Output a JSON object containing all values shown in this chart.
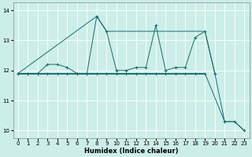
{
  "xlabel": "Humidex (Indice chaleur)",
  "bg_color": "#cceee8",
  "line_color": "#1a6b6b",
  "grid_color": "#ffffff",
  "x_main": [
    0,
    1,
    2,
    3,
    4,
    5,
    6,
    7,
    8,
    9,
    10,
    11,
    12,
    13,
    14,
    15,
    16,
    17,
    18,
    19,
    20,
    21,
    22,
    23
  ],
  "y_main": [
    11.9,
    11.9,
    11.9,
    12.2,
    12.2,
    12.1,
    11.9,
    11.9,
    13.8,
    13.3,
    12.0,
    12.0,
    12.1,
    12.1,
    13.5,
    12.0,
    12.1,
    12.1,
    13.1,
    13.3,
    11.9,
    10.3,
    10.3,
    10.0
  ],
  "x_flat": [
    0,
    1,
    2,
    3,
    4,
    5,
    6,
    7,
    8,
    9,
    10,
    11,
    12,
    13,
    14,
    15,
    16,
    17,
    18,
    19
  ],
  "y_flat": [
    11.9,
    11.9,
    11.9,
    11.9,
    11.9,
    11.9,
    11.9,
    11.9,
    11.9,
    11.9,
    11.9,
    11.9,
    11.9,
    11.9,
    11.9,
    11.9,
    11.9,
    11.9,
    11.9,
    11.9
  ],
  "x_rise": [
    0,
    8,
    9,
    19,
    20
  ],
  "y_rise": [
    11.9,
    13.8,
    13.3,
    13.3,
    11.9
  ],
  "x_fall": [
    0,
    19,
    21,
    22,
    23
  ],
  "y_fall": [
    11.9,
    11.9,
    10.3,
    10.3,
    10.0
  ],
  "ylim": [
    9.75,
    14.25
  ],
  "yticks": [
    10,
    11,
    12,
    13,
    14
  ],
  "xlim": [
    -0.5,
    23.5
  ],
  "xticks": [
    0,
    1,
    2,
    3,
    4,
    5,
    6,
    7,
    8,
    9,
    10,
    11,
    12,
    13,
    14,
    15,
    16,
    17,
    18,
    19,
    20,
    21,
    22,
    23
  ]
}
